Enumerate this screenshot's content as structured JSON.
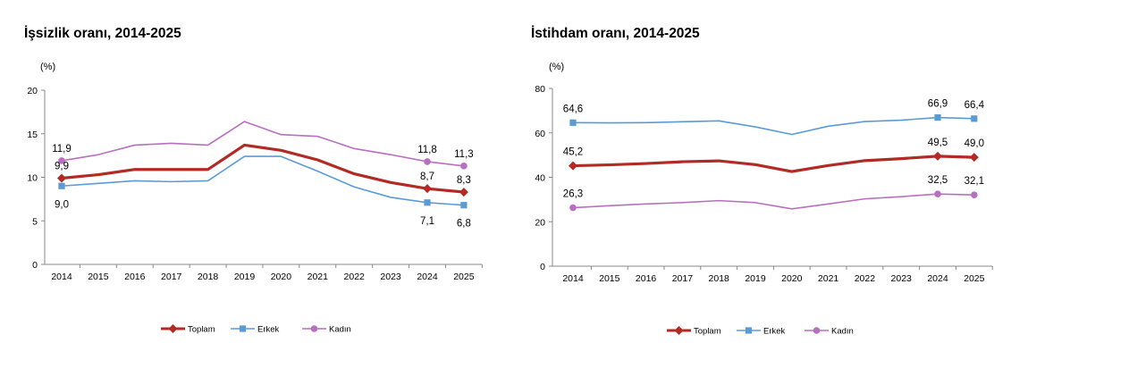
{
  "chart_data": [
    {
      "type": "line",
      "title": "İşsizlik oranı, 2014-2025",
      "unit_label": "(%)",
      "ylim": [
        0,
        20
      ],
      "yticks": [
        "0",
        "5",
        "10",
        "15",
        "20"
      ],
      "categories": [
        "2014",
        "2015",
        "2016",
        "2017",
        "2018",
        "2019",
        "2020",
        "2021",
        "2022",
        "2023",
        "2024",
        "2025"
      ],
      "grid": false,
      "legend_position": "bottom",
      "series": [
        {
          "name": "Toplam",
          "color": "#b22a24",
          "marker": "diamond",
          "values": [
            9.9,
            10.3,
            10.9,
            10.9,
            10.9,
            13.7,
            13.1,
            12.0,
            10.4,
            9.4,
            8.7,
            8.3
          ]
        },
        {
          "name": "Erkek",
          "color": "#5b9bd5",
          "marker": "square",
          "values": [
            9.0,
            9.3,
            9.6,
            9.5,
            9.6,
            12.4,
            12.4,
            10.7,
            8.9,
            7.7,
            7.1,
            6.8
          ]
        },
        {
          "name": "Kadın",
          "color": "#b86fc0",
          "marker": "circle",
          "values": [
            11.9,
            12.6,
            13.7,
            13.9,
            13.7,
            16.4,
            14.9,
            14.7,
            13.3,
            12.6,
            11.8,
            11.3
          ]
        }
      ],
      "data_labels": [
        {
          "series": 2,
          "index": 0,
          "text": "11,9"
        },
        {
          "series": 0,
          "index": 0,
          "text": "9,9"
        },
        {
          "series": 1,
          "index": 0,
          "text": "9,0"
        },
        {
          "series": 2,
          "index": 10,
          "text": "11,8"
        },
        {
          "series": 0,
          "index": 10,
          "text": "8,7"
        },
        {
          "series": 1,
          "index": 10,
          "text": "7,1"
        },
        {
          "series": 2,
          "index": 11,
          "text": "11,3"
        },
        {
          "series": 0,
          "index": 11,
          "text": "8,3"
        },
        {
          "series": 1,
          "index": 11,
          "text": "6,8"
        }
      ]
    },
    {
      "type": "line",
      "title": "İstihdam oranı, 2014-2025",
      "unit_label": "(%)",
      "ylim": [
        0,
        80
      ],
      "yticks": [
        "0",
        "20",
        "40",
        "60",
        "80"
      ],
      "categories": [
        "2014",
        "2015",
        "2016",
        "2017",
        "2018",
        "2019",
        "2020",
        "2021",
        "2022",
        "2023",
        "2024",
        "2025"
      ],
      "grid": false,
      "legend_position": "bottom",
      "series": [
        {
          "name": "Toplam",
          "color": "#b22a24",
          "marker": "diamond",
          "values": [
            45.2,
            45.6,
            46.2,
            47.0,
            47.4,
            45.7,
            42.6,
            45.3,
            47.5,
            48.4,
            49.5,
            49.0
          ]
        },
        {
          "name": "Erkek",
          "color": "#5b9bd5",
          "marker": "square",
          "values": [
            64.6,
            64.5,
            64.6,
            65.0,
            65.4,
            62.7,
            59.3,
            63.0,
            65.1,
            65.7,
            66.9,
            66.4
          ]
        },
        {
          "name": "Kadın",
          "color": "#b86fc0",
          "marker": "circle",
          "values": [
            26.3,
            27.2,
            28.0,
            28.6,
            29.5,
            28.6,
            25.8,
            28.0,
            30.3,
            31.3,
            32.5,
            32.1
          ]
        }
      ],
      "data_labels": [
        {
          "series": 1,
          "index": 0,
          "text": "64,6"
        },
        {
          "series": 0,
          "index": 0,
          "text": "45,2"
        },
        {
          "series": 2,
          "index": 0,
          "text": "26,3"
        },
        {
          "series": 1,
          "index": 10,
          "text": "66,9"
        },
        {
          "series": 0,
          "index": 10,
          "text": "49,5"
        },
        {
          "series": 2,
          "index": 10,
          "text": "32,5"
        },
        {
          "series": 1,
          "index": 11,
          "text": "66,4"
        },
        {
          "series": 0,
          "index": 11,
          "text": "49,0"
        },
        {
          "series": 2,
          "index": 11,
          "text": "32,1"
        }
      ]
    }
  ]
}
